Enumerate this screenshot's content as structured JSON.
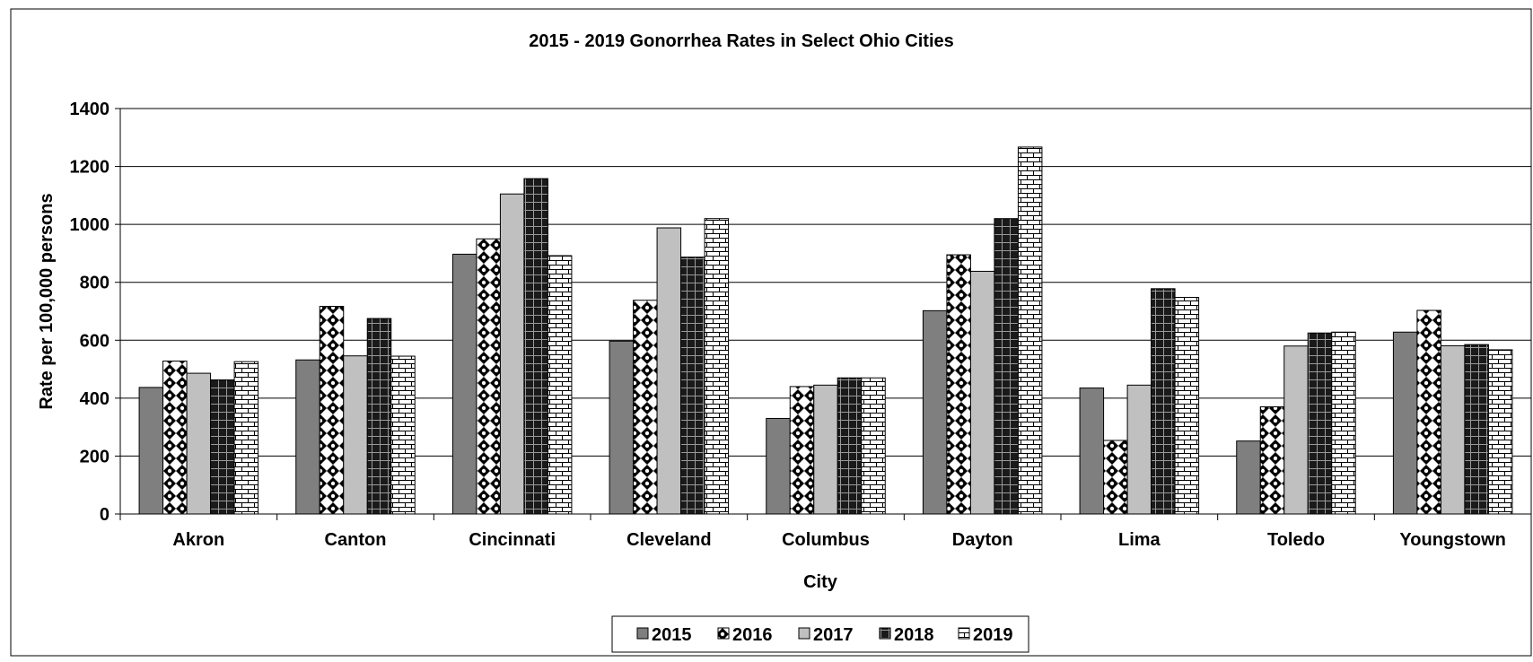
{
  "chart_data": {
    "type": "bar",
    "title": "2015 - 2019 Gonorrhea Rates in Select Ohio Cities",
    "xlabel": "City",
    "ylabel": "Rate per 100,000 persons",
    "ylim": [
      0,
      1400
    ],
    "yticks": [
      0,
      200,
      400,
      600,
      800,
      1000,
      1200,
      1400
    ],
    "grid": true,
    "legend_position": "bottom",
    "categories": [
      "Akron",
      "Canton",
      "Cincinnati",
      "Cleveland",
      "Columbus",
      "Dayton",
      "Lima",
      "Toledo",
      "Youngstown"
    ],
    "series": [
      {
        "name": "2015",
        "pattern": "solid-dark",
        "color": "#7f7f7f",
        "values": [
          437,
          532,
          897,
          597,
          330,
          702,
          435,
          252,
          628
        ]
      },
      {
        "name": "2016",
        "pattern": "checker-diamond",
        "color": "#333333",
        "values": [
          528,
          717,
          950,
          738,
          440,
          895,
          254,
          370,
          703
        ]
      },
      {
        "name": "2017",
        "pattern": "solid-light",
        "color": "#c0c0c0",
        "values": [
          486,
          546,
          1105,
          988,
          445,
          838,
          445,
          580,
          581
        ]
      },
      {
        "name": "2018",
        "pattern": "dark-grid",
        "color": "#1a1a1a",
        "values": [
          463,
          675,
          1158,
          887,
          470,
          1020,
          778,
          625,
          585
        ]
      },
      {
        "name": "2019",
        "pattern": "brick",
        "color": "#ffffff",
        "values": [
          526,
          545,
          892,
          1020,
          470,
          1267,
          748,
          628,
          567
        ]
      }
    ]
  }
}
